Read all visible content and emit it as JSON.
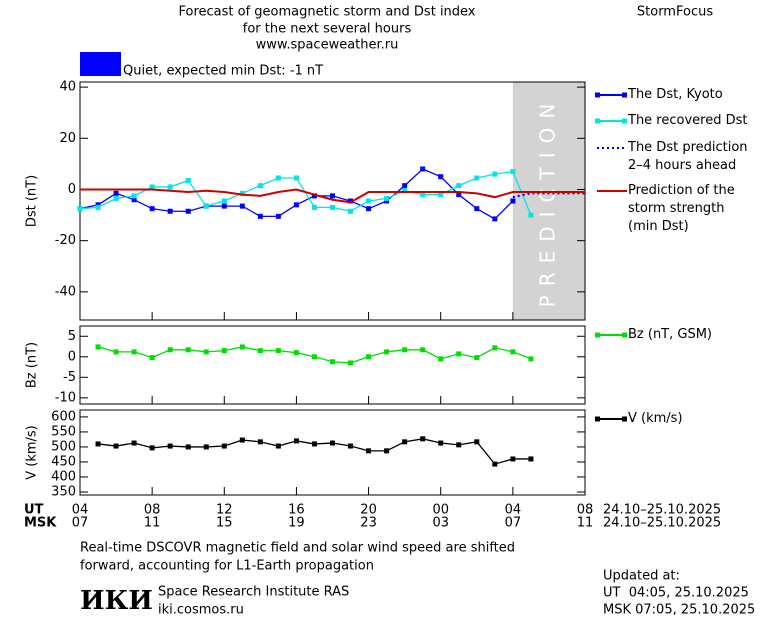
{
  "header": {
    "title_lines": [
      "Forecast of geomagnetic storm and Dst index",
      "for the next several hours",
      "www.spaceweather.ru"
    ],
    "brand": "StormFocus",
    "status": {
      "color": "#0000ff",
      "text": "Quiet, expected min Dst: -1 nT"
    }
  },
  "chart_data": [
    {
      "type": "line",
      "y_label": "Dst (nT)",
      "xlim": [
        0,
        28
      ],
      "ylim": [
        -51,
        42
      ],
      "yticks": [
        -40,
        -20,
        0,
        20,
        40
      ],
      "prediction_zone": {
        "x": [
          24,
          28
        ],
        "label": "PREDICTION",
        "color": "#d3d3d3"
      },
      "x": [
        0,
        1,
        2,
        3,
        4,
        5,
        6,
        7,
        8,
        9,
        10,
        11,
        12,
        13,
        14,
        15,
        16,
        17,
        18,
        19,
        20,
        21,
        22,
        23,
        24,
        25,
        26,
        27,
        28
      ],
      "series": [
        {
          "name": "The Dst, Kyoto",
          "color": "#0000ff",
          "marker": "square",
          "style": "solid",
          "values": [
            -7.5,
            -6,
            -1.5,
            -4,
            -7.5,
            -8.5,
            -8.5,
            -6.5,
            -6.5,
            -6.5,
            -10.5,
            -10.5,
            -6,
            -2.5,
            -2.5,
            -4.5,
            -7.5,
            -4.5,
            1.5,
            8,
            5,
            -2,
            -7.5,
            -11.5,
            -4.5,
            null,
            null,
            null,
            null
          ]
        },
        {
          "name": "The recovered Dst",
          "color": "#00e5e5",
          "marker": "square",
          "style": "solid",
          "values": [
            -7.5,
            -7,
            -3.5,
            -2.5,
            1,
            1,
            3.5,
            -6.5,
            -4.5,
            -1.5,
            1.5,
            4.5,
            4.5,
            -7,
            -7,
            -8.5,
            -4.5,
            -3.5,
            -0.5,
            -2,
            -2,
            1.5,
            4.5,
            6,
            7,
            -10,
            null,
            null,
            null
          ]
        },
        {
          "name": "The Dst prediction 2–4 hours ahead",
          "color": "#0000cc",
          "marker": "none",
          "style": "dotted",
          "values": [
            null,
            null,
            null,
            null,
            null,
            null,
            null,
            null,
            null,
            null,
            null,
            null,
            null,
            null,
            null,
            null,
            null,
            null,
            null,
            null,
            null,
            null,
            null,
            null,
            -3,
            -1.5,
            -1.5,
            -1.5,
            -1.5
          ]
        },
        {
          "name": "Prediction of the storm strength (min Dst)",
          "color": "#cc0000",
          "marker": "none",
          "style": "solid",
          "values": [
            0,
            0,
            0,
            0,
            0,
            -0.5,
            -1,
            -0.5,
            -1,
            -2,
            -2.5,
            -1,
            0,
            -2,
            -4,
            -5,
            -1,
            -1,
            -1,
            -1,
            -1,
            -1,
            -1.5,
            -3,
            -1,
            -1,
            -1,
            -1,
            -1
          ]
        }
      ]
    },
    {
      "type": "line",
      "y_label": "Bz (nT)",
      "xlim": [
        0,
        28
      ],
      "ylim": [
        -11.5,
        7.5
      ],
      "yticks": [
        -10,
        -5,
        0,
        5
      ],
      "x": [
        1,
        2,
        3,
        4,
        5,
        6,
        7,
        8,
        9,
        10,
        11,
        12,
        13,
        14,
        15,
        16,
        17,
        18,
        19,
        20,
        21,
        22,
        23,
        24,
        25
      ],
      "series": [
        {
          "name": "Bz (nT, GSM)",
          "color": "#00dd00",
          "marker": "square",
          "style": "solid",
          "values": [
            2.4,
            1.2,
            1.2,
            -0.2,
            1.7,
            1.7,
            1.2,
            1.5,
            2.4,
            1.5,
            1.5,
            1,
            0,
            -1.2,
            -1.5,
            0,
            1.2,
            1.7,
            1.7,
            -0.5,
            0.7,
            -0.2,
            2.2,
            1.2,
            -0.5
          ]
        }
      ]
    },
    {
      "type": "line",
      "y_label": "V (km/s)",
      "xlim": [
        0,
        28
      ],
      "ylim": [
        340,
        623
      ],
      "yticks": [
        350,
        400,
        450,
        500,
        550,
        600
      ],
      "x": [
        1,
        2,
        3,
        4,
        5,
        6,
        7,
        8,
        9,
        10,
        11,
        12,
        13,
        14,
        15,
        16,
        17,
        18,
        19,
        20,
        21,
        22,
        23,
        24,
        25
      ],
      "series": [
        {
          "name": "V (km/s)",
          "color": "#000000",
          "marker": "square",
          "style": "solid",
          "values": [
            510,
            503,
            513,
            497,
            503,
            500,
            500,
            503,
            523,
            517,
            503,
            520,
            510,
            513,
            503,
            487,
            487,
            517,
            527,
            513,
            507,
            517,
            443,
            460,
            460
          ]
        }
      ],
      "xticks": [
        {
          "value": 0,
          "label": "04"
        },
        {
          "value": 4,
          "label": "08"
        },
        {
          "value": 8,
          "label": "12"
        },
        {
          "value": 12,
          "label": "16"
        },
        {
          "value": 16,
          "label": "20"
        },
        {
          "value": 20,
          "label": "00"
        },
        {
          "value": 24,
          "label": "04"
        },
        {
          "value": 28,
          "label": "08"
        }
      ],
      "msk_ticks": [
        {
          "value": 0,
          "label": "07"
        },
        {
          "value": 4,
          "label": "11"
        },
        {
          "value": 8,
          "label": "15"
        },
        {
          "value": 12,
          "label": "19"
        },
        {
          "value": 16,
          "label": "23"
        },
        {
          "value": 20,
          "label": "03"
        },
        {
          "value": 24,
          "label": "07"
        },
        {
          "value": 28,
          "label": "11"
        }
      ],
      "ut_label": "UT",
      "msk_label": "MSK",
      "ut_range": "24.10–25.10.2025",
      "msk_range": "24.10–25.10.2025"
    }
  ],
  "footer": {
    "note_lines": [
      "Real-time DSCOVR magnetic field and solar wind speed are shifted",
      "forward, accounting for L1-Earth propagation"
    ],
    "logo": "ИКИ",
    "institute": "Space Research Institute RAS",
    "site": "iki.cosmos.ru",
    "updated_label": "Updated at:",
    "updated_ut": "UT  04:05, 25.10.2025",
    "updated_msk": "MSK 07:05, 25.10.2025"
  }
}
